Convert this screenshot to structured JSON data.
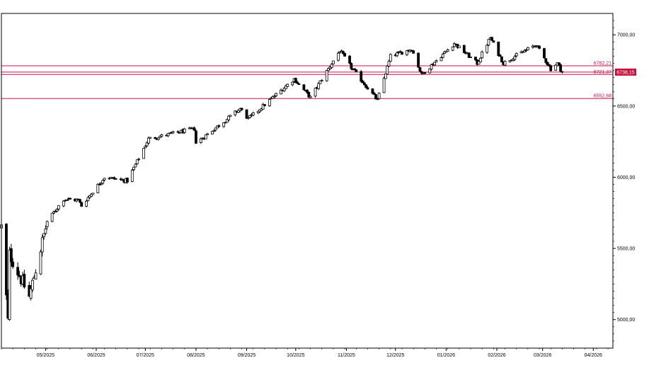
{
  "chart_data": {
    "type": "candlestick",
    "title": "",
    "xlabel": "",
    "ylabel": "",
    "ylim": [
      4800,
      7150
    ],
    "grid": false,
    "y_ticks": [
      5000,
      5500,
      6000,
      6500,
      7000
    ],
    "y_tick_labels": [
      "5000,00",
      "5500,00",
      "6000,00",
      "6500,00",
      "7000,00"
    ],
    "x_ticks": [
      "2025-05-01",
      "2025-06-01",
      "2025-07-01",
      "2025-08-01",
      "2025-09-01",
      "2025-10-01",
      "2025-11-01",
      "2025-12-01",
      "2026-01-01",
      "2026-02-01",
      "2026-03-01",
      "2026-04-01"
    ],
    "x_tick_labels": [
      "05/2025",
      "06/2025",
      "07/2025",
      "08/2025",
      "09/2025",
      "10/2025",
      "11/2025",
      "12/2025",
      "01/2026",
      "02/2026",
      "03/2026",
      "04/2026"
    ],
    "x_range": [
      "2025-04-04",
      "2026-04-13"
    ],
    "colors": {
      "up": "#ffffff",
      "down": "#000000",
      "level_line": "#d0104c",
      "last_price_bg": "#c8103c"
    },
    "horizontal_levels": [
      {
        "value": 6782.21,
        "label": "6782,21"
      },
      {
        "value": 6721.37,
        "label": "6721,37"
      },
      {
        "value": 6552.68,
        "label": "6552,68"
      }
    ],
    "last_price": {
      "value": 6738.15,
      "label": "6738,15"
    },
    "anchors": [
      {
        "date": "2025-04-04",
        "close": 5650
      },
      {
        "date": "2025-04-08",
        "close": 4990
      },
      {
        "date": "2025-04-09",
        "close": 5460
      },
      {
        "date": "2025-04-21",
        "close": 5160
      },
      {
        "date": "2025-05-02",
        "close": 5690
      },
      {
        "date": "2025-05-12",
        "close": 5845
      },
      {
        "date": "2025-05-21",
        "close": 5840
      },
      {
        "date": "2025-05-23",
        "close": 5800
      },
      {
        "date": "2025-06-06",
        "close": 6000
      },
      {
        "date": "2025-06-20",
        "close": 5975
      },
      {
        "date": "2025-07-03",
        "close": 6270
      },
      {
        "date": "2025-07-31",
        "close": 6340
      },
      {
        "date": "2025-08-01",
        "close": 6240
      },
      {
        "date": "2025-08-28",
        "close": 6480
      },
      {
        "date": "2025-09-02",
        "close": 6410
      },
      {
        "date": "2025-09-30",
        "close": 6690
      },
      {
        "date": "2025-10-10",
        "close": 6560
      },
      {
        "date": "2025-10-28",
        "close": 6890
      },
      {
        "date": "2025-11-04",
        "close": 6770
      },
      {
        "date": "2025-11-20",
        "close": 6540
      },
      {
        "date": "2025-11-28",
        "close": 6850
      },
      {
        "date": "2025-12-11",
        "close": 6900
      },
      {
        "date": "2025-12-17",
        "close": 6720
      },
      {
        "date": "2026-01-06",
        "close": 6940
      },
      {
        "date": "2026-01-20",
        "close": 6800
      },
      {
        "date": "2026-01-28",
        "close": 6980
      },
      {
        "date": "2026-02-05",
        "close": 6800
      },
      {
        "date": "2026-02-12",
        "close": 6850
      },
      {
        "date": "2026-02-25",
        "close": 6930
      },
      {
        "date": "2026-03-06",
        "close": 6760
      },
      {
        "date": "2026-03-10",
        "close": 6800
      },
      {
        "date": "2026-03-13",
        "close": 6738.15
      }
    ]
  }
}
